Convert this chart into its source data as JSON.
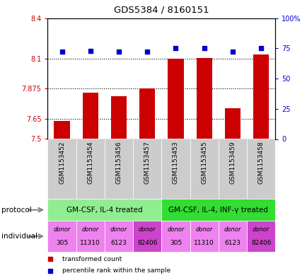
{
  "title": "GDS5384 / 8160151",
  "samples": [
    "GSM1153452",
    "GSM1153454",
    "GSM1153456",
    "GSM1153457",
    "GSM1153453",
    "GSM1153455",
    "GSM1153459",
    "GSM1153458"
  ],
  "bar_values": [
    7.635,
    7.845,
    7.82,
    7.875,
    8.1,
    8.105,
    7.73,
    8.13
  ],
  "percentile_values": [
    72,
    73,
    72,
    72,
    75,
    75,
    72,
    75
  ],
  "ylim_left": [
    7.5,
    8.4
  ],
  "ylim_right": [
    0,
    100
  ],
  "yticks_left": [
    7.5,
    7.65,
    7.875,
    8.1,
    8.4
  ],
  "ytick_labels_left": [
    "7.5",
    "7.65",
    "7.875",
    "8.1",
    "8.4"
  ],
  "yticks_right": [
    0,
    25,
    50,
    75,
    100
  ],
  "ytick_labels_right": [
    "0",
    "25",
    "50",
    "75",
    "100%"
  ],
  "hlines": [
    7.65,
    7.875,
    8.1
  ],
  "bar_color": "#cc0000",
  "percentile_color": "#0000cc",
  "bar_bottom": 7.5,
  "protocol_groups": [
    {
      "label": "GM-CSF, IL-4 treated",
      "start": 0,
      "end": 4,
      "color": "#90ee90"
    },
    {
      "label": "GM-CSF, IL-4, INF-γ treated",
      "start": 4,
      "end": 8,
      "color": "#33dd33"
    }
  ],
  "individuals": [
    {
      "label": "donor\n305",
      "color": "#ee82ee"
    },
    {
      "label": "donor\n11310",
      "color": "#ee82ee"
    },
    {
      "label": "donor\n6123",
      "color": "#ee82ee"
    },
    {
      "label": "donor\n82406",
      "color": "#cc44cc"
    },
    {
      "label": "donor\n305",
      "color": "#ee82ee"
    },
    {
      "label": "donor\n11310",
      "color": "#ee82ee"
    },
    {
      "label": "donor\n6123",
      "color": "#ee82ee"
    },
    {
      "label": "donor\n82406",
      "color": "#cc44cc"
    }
  ],
  "protocol_label": "protocol",
  "individual_label": "individual",
  "legend_items": [
    {
      "label": "transformed count",
      "color": "#cc0000"
    },
    {
      "label": "percentile rank within the sample",
      "color": "#0000cc"
    }
  ],
  "sample_bg_color": "#cccccc",
  "fig_width": 4.35,
  "fig_height": 3.93,
  "dpi": 100
}
